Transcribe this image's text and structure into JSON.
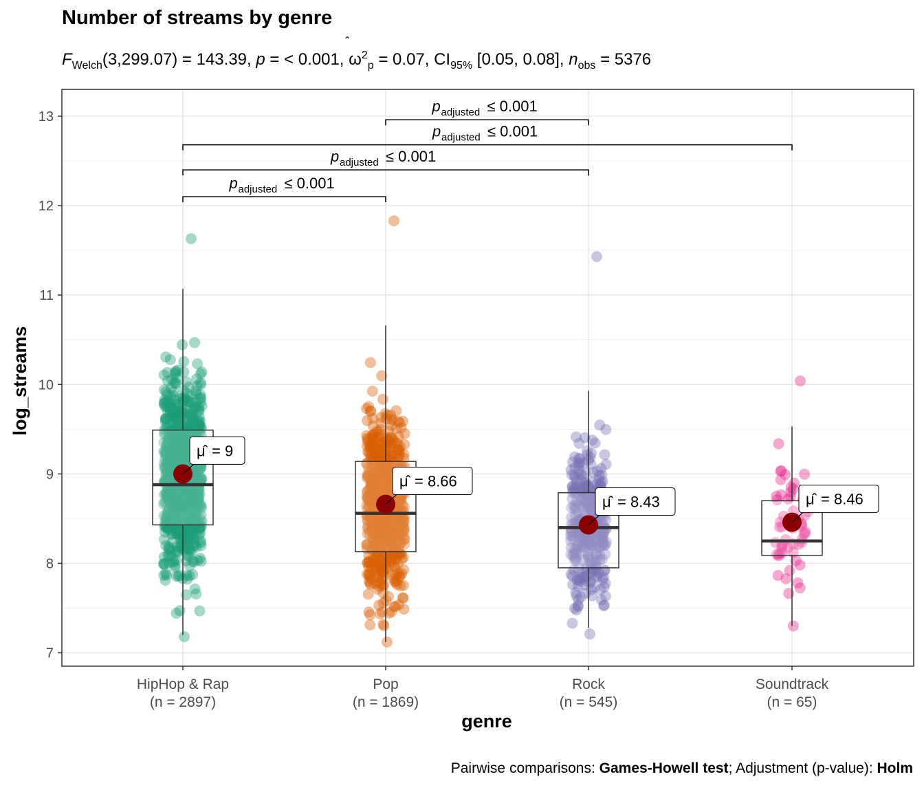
{
  "title": "Number of streams by genre",
  "subtitle": {
    "stat_symbol": "F",
    "stat_sub": "Welch",
    "stat_args": "(3,299.07) = 143.39, ",
    "p_part": " = < 0.001, ",
    "effect_sup": "2",
    "effect_sub": "p",
    "effect_value": " = 0.07, CI",
    "ci_sub": "95%",
    "ci_value": " [0.05, 0.08], ",
    "n_symbol": "n",
    "n_sub": "obs",
    "n_value": " = 5376"
  },
  "caption": {
    "prefix": "Pairwise comparisons: ",
    "test": "Games-Howell test",
    "middle": "; Adjustment (p-value): ",
    "method": "Holm"
  },
  "colors": {
    "HipHop & Rap": "#1b9e77",
    "Pop": "#d95f02",
    "Rock": "#7570b3",
    "Soundtrack": "#e7298a",
    "mean": "#8b0000"
  },
  "chart_data": {
    "type": "box-violin-scatter",
    "xlabel": "genre",
    "ylabel": "log_streams",
    "ylim": [
      6.85,
      13.3
    ],
    "yticks": [
      7,
      8,
      9,
      10,
      11,
      12,
      13
    ],
    "grid": true,
    "categories": [
      "HipHop & Rap",
      "Pop",
      "Rock",
      "Soundtrack"
    ],
    "counts": [
      "(n = 2897)",
      "(n = 1869)",
      "(n = 545)",
      "(n = 65)"
    ],
    "box": [
      {
        "q1": 8.43,
        "median": 8.88,
        "q3": 9.49,
        "whisker_low": 7.2,
        "whisker_high": 11.07
      },
      {
        "q1": 8.13,
        "median": 8.56,
        "q3": 9.14,
        "whisker_low": 7.12,
        "whisker_high": 10.66
      },
      {
        "q1": 7.95,
        "median": 8.4,
        "q3": 8.79,
        "whisker_low": 7.28,
        "whisker_high": 9.93
      },
      {
        "q1": 8.09,
        "median": 8.25,
        "q3": 8.7,
        "whisker_low": 7.3,
        "whisker_high": 9.53
      }
    ],
    "means": [
      9.0,
      8.66,
      8.43,
      8.46
    ],
    "mean_labels": [
      "= 9",
      "= 8.66",
      "= 8.43",
      "= 8.46"
    ],
    "points_range": [
      [
        7.18,
        11.63
      ],
      [
        7.12,
        11.83
      ],
      [
        7.21,
        11.43
      ],
      [
        7.3,
        10.04
      ]
    ],
    "comparisons": [
      {
        "from": 0,
        "to": 1,
        "y": 12.1,
        "label": "≤ 0.001"
      },
      {
        "from": 0,
        "to": 2,
        "y": 12.4,
        "label": "≤ 0.001"
      },
      {
        "from": 0,
        "to": 3,
        "y": 12.68,
        "label": "≤ 0.001"
      },
      {
        "from": 1,
        "to": 2,
        "y": 12.96,
        "label": "≤ 0.001"
      }
    ],
    "comparison_prefix": "p",
    "comparison_sub": "adjusted"
  }
}
